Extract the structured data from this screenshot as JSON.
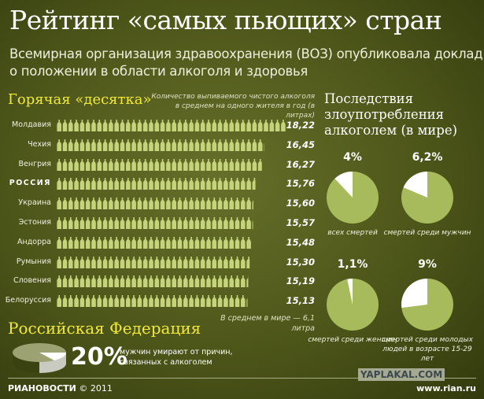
{
  "title": "Рейтинг «самых пьющих» стран",
  "subtitle": "Всемирная организация здравоохранения (ВОЗ) опубликовала доклад о положении в области алкоголя и здоровья",
  "chart_data": [
    {
      "type": "bar",
      "title": "Горячая «десятка»",
      "ylabel": "Количество выпиваемого чистого алкоголя в среднем на одного жителя в год (в литрах)",
      "categories": [
        "Молдавия",
        "Чехия",
        "Венгрия",
        "РОССИЯ",
        "Украина",
        "Эстония",
        "Андорра",
        "Румыния",
        "Словения",
        "Белоруссия"
      ],
      "values": [
        18.22,
        16.45,
        16.27,
        15.76,
        15.6,
        15.57,
        15.48,
        15.3,
        15.19,
        15.13
      ],
      "value_labels": [
        "18,22",
        "16,45",
        "16,27",
        "15,76",
        "15,60",
        "15,57",
        "15,48",
        "15,30",
        "15,19",
        "15,13"
      ],
      "highlight": "РОССИЯ",
      "mark": "bottle-pictograph",
      "annotation": "В среднем в мире — 6,1 литра"
    },
    {
      "type": "pie",
      "title": "Последствия злоупотребления алкоголем (в мире)",
      "slices": [
        {
          "label": "4%",
          "value": 4,
          "caption": "всех смертей"
        },
        {
          "label": "6,2%",
          "value": 6.2,
          "caption": "смертей среди мужчин"
        },
        {
          "label": "1,1%",
          "value": 1.1,
          "caption": "смертей среди женщин"
        },
        {
          "label": "9%",
          "value": 9,
          "caption": "смертей среди молодых людей в возрасте 15-29 лет"
        }
      ]
    },
    {
      "type": "pie",
      "title": "Российская Федерация",
      "value": 20,
      "label": "20%",
      "text": "мужчин умирают от причин, связанных с алкоголем"
    }
  ],
  "colors": {
    "bottle": "#c5d47a",
    "pie": "#a8bb5c",
    "highlight": "#f2ea3a",
    "slice": "#ffffff"
  },
  "footer": {
    "brand": "РИАНОВОСТИ",
    "copyright": "© 2011",
    "site": "www.rian.ru",
    "watermark": "YAPLAKAL.COM"
  }
}
